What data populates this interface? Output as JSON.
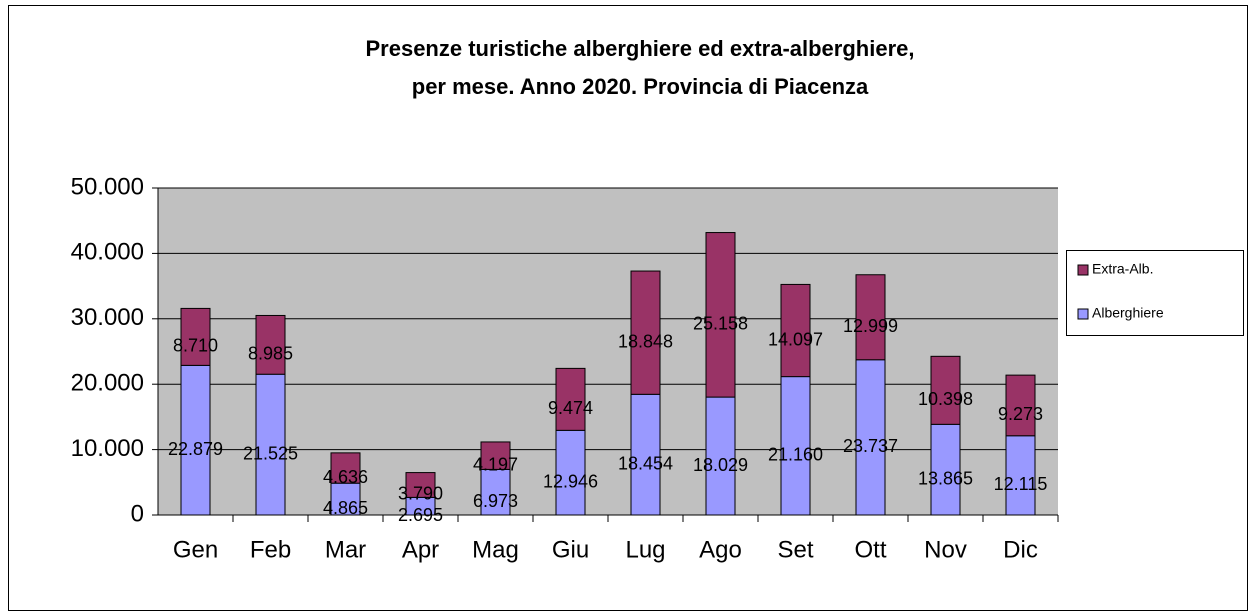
{
  "chart_data": {
    "type": "stacked_bar",
    "title": "Presenze turistiche alberghiere ed extra-alberghiere,",
    "subtitle": "per mese. Anno 2020. Provincia di Piacenza",
    "categories": [
      "Gen",
      "Feb",
      "Mar",
      "Apr",
      "Mag",
      "Giu",
      "Lug",
      "Ago",
      "Set",
      "Ott",
      "Nov",
      "Dic"
    ],
    "series": [
      {
        "name": "Alberghiere",
        "color": "#9999ff",
        "values": [
          22879,
          21525,
          4865,
          2695,
          6973,
          12946,
          18454,
          18029,
          21160,
          23737,
          13865,
          12115
        ],
        "value_labels": [
          "22.879",
          "21.525",
          "4.865",
          "2.695",
          "6.973",
          "12.946",
          "18.454",
          "18.029",
          "21.160",
          "23.737",
          "13.865",
          "12.115"
        ]
      },
      {
        "name": "Extra-Alb.",
        "color": "#993366",
        "values": [
          8710,
          8985,
          4636,
          3790,
          4197,
          9474,
          18848,
          25158,
          14097,
          12999,
          10398,
          9273
        ],
        "value_labels": [
          "8.710",
          "8.985",
          "4.636",
          "3.790",
          "4.197",
          "9.474",
          "18.848",
          "25.158",
          "14.097",
          "12.999",
          "10.398",
          "9.273"
        ]
      }
    ],
    "ylim": [
      0,
      50000
    ],
    "yticks": [
      0,
      {
        "value": 10000,
        "label": "10.000"
      },
      {
        "value": 20000,
        "label": "20.000"
      },
      {
        "value": 30000,
        "label": "30.000"
      },
      {
        "value": 40000,
        "label": "40.000"
      },
      {
        "value": 50000,
        "label": "50.000"
      }
    ],
    "grid": true,
    "plot_background": "#c0c0c0",
    "legend": "right"
  }
}
